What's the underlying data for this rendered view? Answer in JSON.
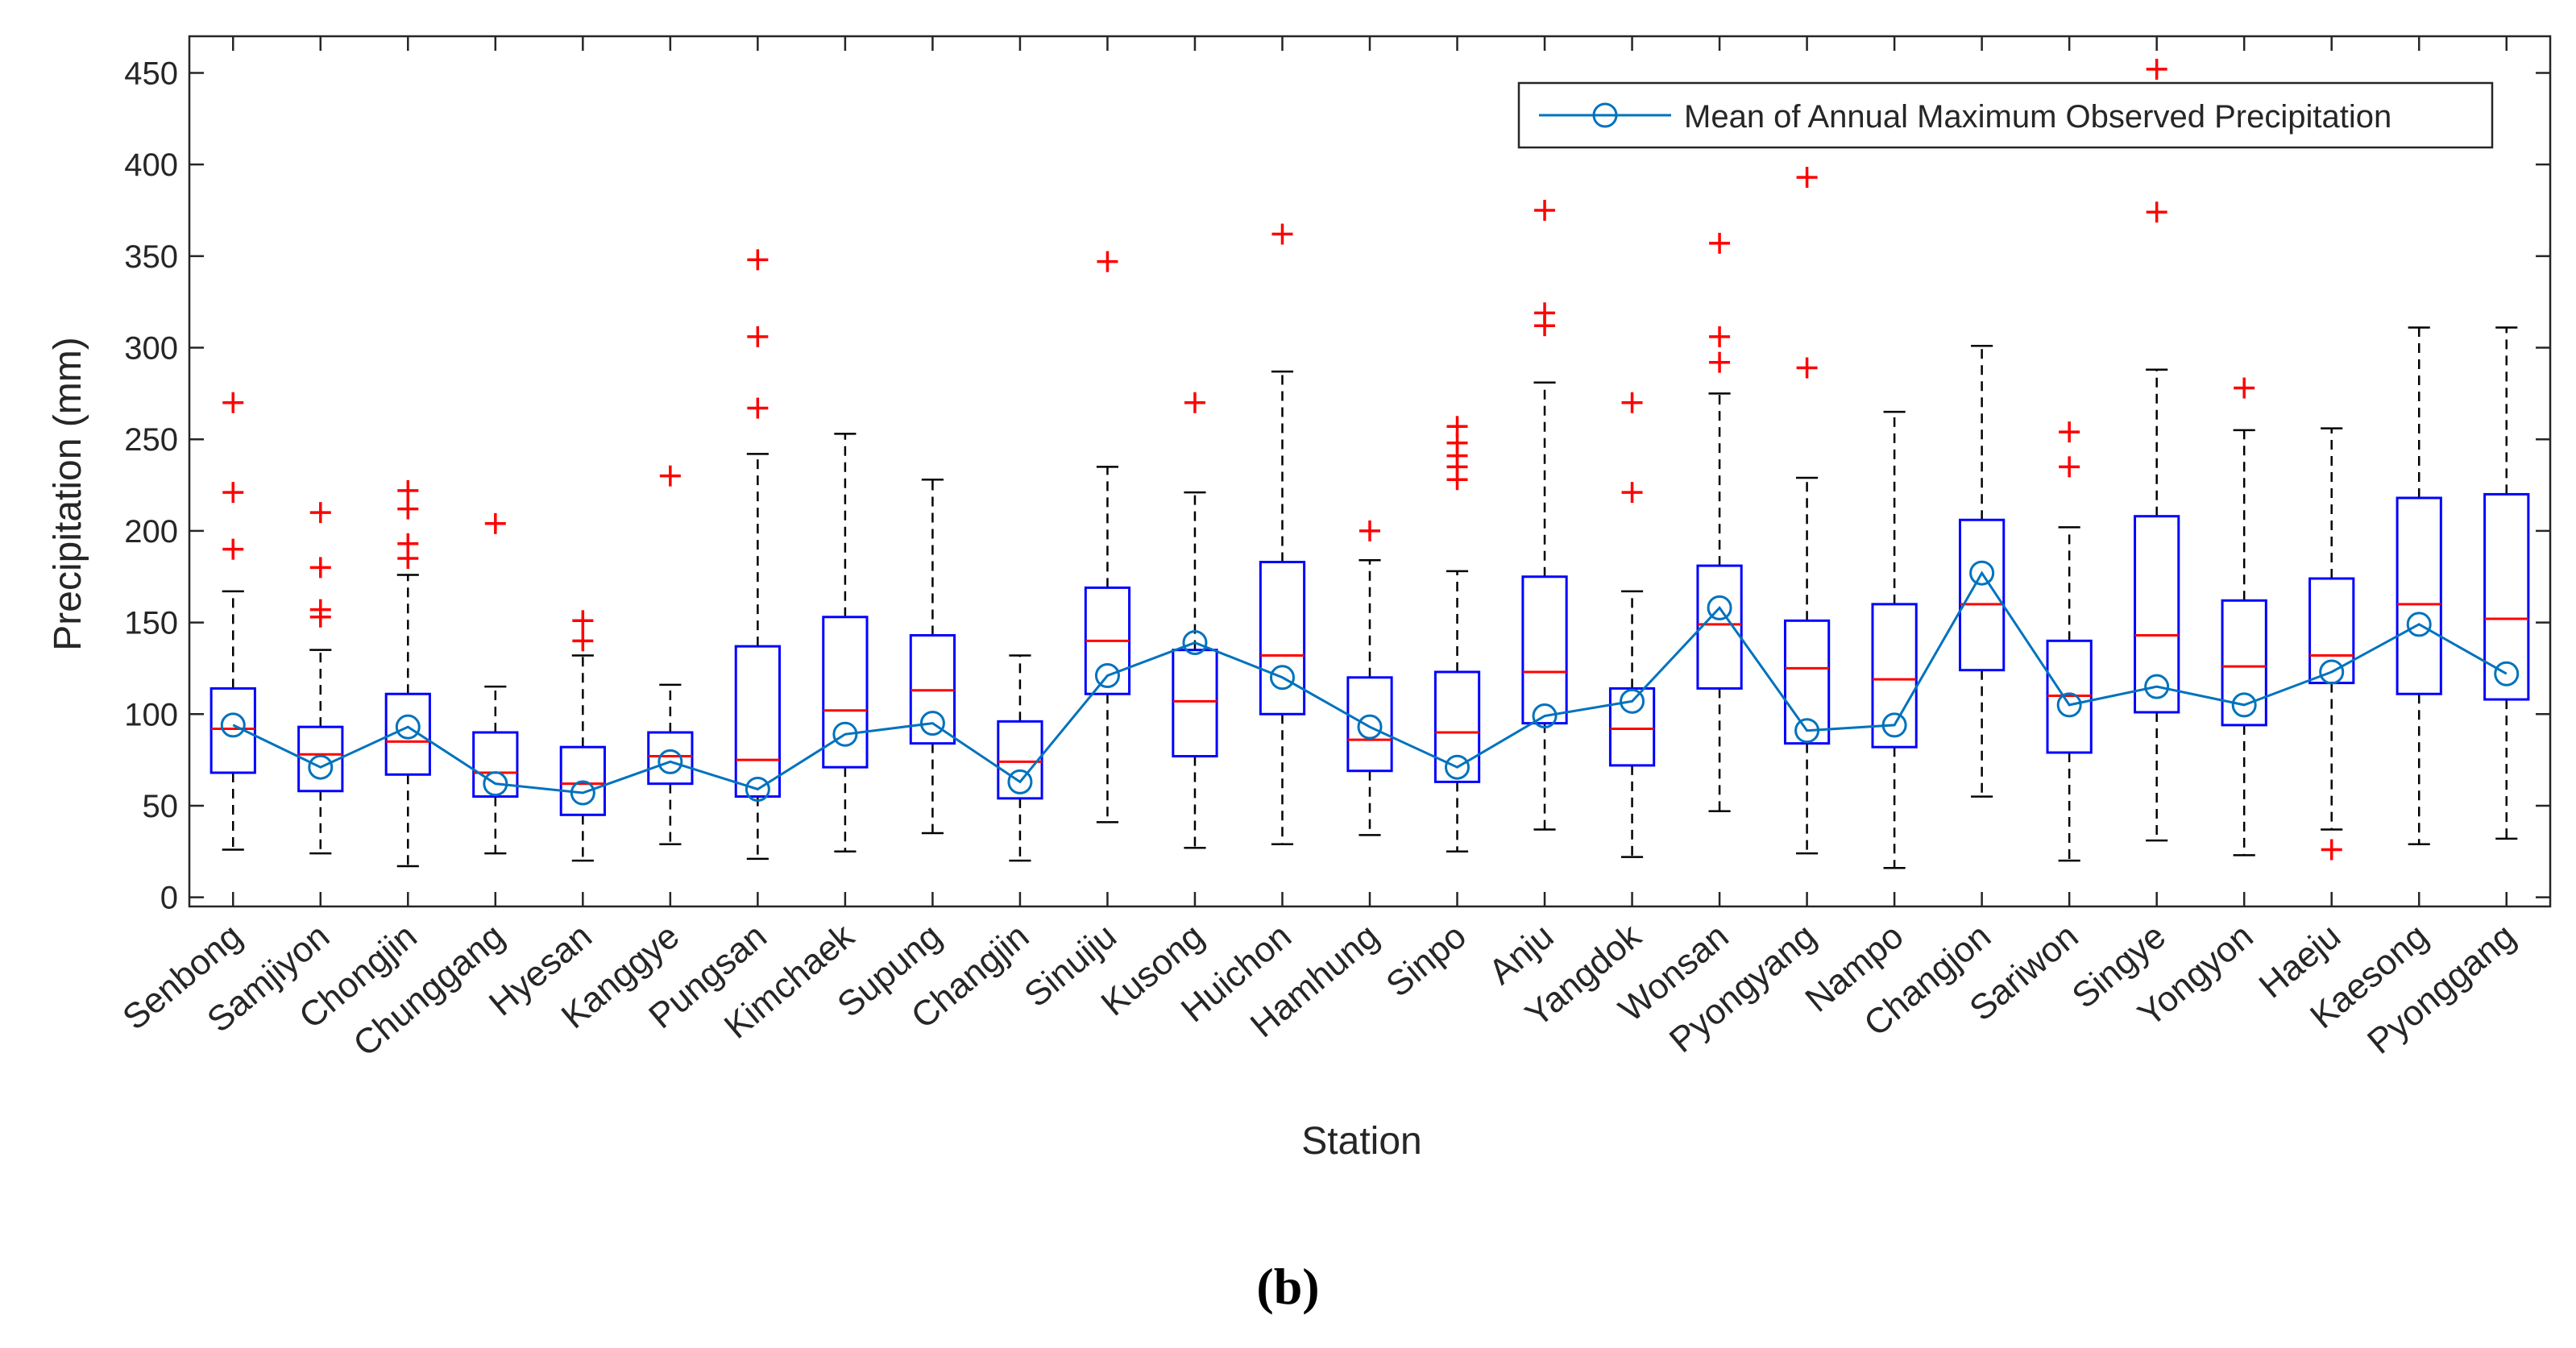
{
  "chart_data": {
    "type": "box",
    "title": "",
    "xlabel": "Station",
    "ylabel": "Precipitation (mm)",
    "ylim": [
      -5,
      470
    ],
    "yticks": [
      0,
      50,
      100,
      150,
      200,
      250,
      300,
      350,
      400,
      450
    ],
    "grid": false,
    "legend": {
      "position": "top-right",
      "entries": [
        "Mean of Annual Maximum Observed Precipitation"
      ]
    },
    "colors": {
      "box": "#0000ff",
      "median": "#ff0000",
      "whisker": "#000000",
      "outlier": "#ff0000",
      "mean_line": "#0072bd"
    },
    "categories": [
      "Senbong",
      "Samjiyon",
      "Chongjin",
      "Chunggang",
      "Hyesan",
      "Kanggye",
      "Pungsan",
      "Kimchaek",
      "Supung",
      "Changjin",
      "Sinuiju",
      "Kusong",
      "Huichon",
      "Hamhung",
      "Sinpo",
      "Anju",
      "Yangdok",
      "Wonsan",
      "Pyongyang",
      "Nampo",
      "Changjon",
      "Sariwon",
      "Singye",
      "Yongyon",
      "Haeju",
      "Kaesong",
      "Pyonggang"
    ],
    "boxes": [
      {
        "whisker_low": 26,
        "q1": 68,
        "median": 92,
        "q3": 114,
        "whisker_high": 167,
        "outliers": [
          190,
          221,
          270
        ]
      },
      {
        "whisker_low": 24,
        "q1": 58,
        "median": 78,
        "q3": 93,
        "whisker_high": 135,
        "outliers": [
          153,
          157,
          180,
          210
        ]
      },
      {
        "whisker_low": 17,
        "q1": 67,
        "median": 85,
        "q3": 111,
        "whisker_high": 176,
        "outliers": [
          185,
          193,
          212,
          222
        ]
      },
      {
        "whisker_low": 24,
        "q1": 55,
        "median": 68,
        "q3": 90,
        "whisker_high": 115,
        "outliers": [
          204
        ]
      },
      {
        "whisker_low": 20,
        "q1": 45,
        "median": 62,
        "q3": 82,
        "whisker_high": 132,
        "outliers": [
          140,
          151
        ]
      },
      {
        "whisker_low": 29,
        "q1": 62,
        "median": 77,
        "q3": 90,
        "whisker_high": 116,
        "outliers": [
          230
        ]
      },
      {
        "whisker_low": 21,
        "q1": 55,
        "median": 75,
        "q3": 137,
        "whisker_high": 242,
        "outliers": [
          267,
          306,
          348
        ]
      },
      {
        "whisker_low": 25,
        "q1": 71,
        "median": 102,
        "q3": 153,
        "whisker_high": 253,
        "outliers": []
      },
      {
        "whisker_low": 35,
        "q1": 84,
        "median": 113,
        "q3": 143,
        "whisker_high": 228,
        "outliers": []
      },
      {
        "whisker_low": 20,
        "q1": 54,
        "median": 74,
        "q3": 96,
        "whisker_high": 132,
        "outliers": []
      },
      {
        "whisker_low": 41,
        "q1": 111,
        "median": 140,
        "q3": 169,
        "whisker_high": 235,
        "outliers": [
          347
        ]
      },
      {
        "whisker_low": 27,
        "q1": 77,
        "median": 107,
        "q3": 135,
        "whisker_high": 221,
        "outliers": [
          270
        ]
      },
      {
        "whisker_low": 29,
        "q1": 100,
        "median": 132,
        "q3": 183,
        "whisker_high": 287,
        "outliers": [
          362
        ]
      },
      {
        "whisker_low": 34,
        "q1": 69,
        "median": 86,
        "q3": 120,
        "whisker_high": 184,
        "outliers": [
          200
        ]
      },
      {
        "whisker_low": 25,
        "q1": 63,
        "median": 90,
        "q3": 123,
        "whisker_high": 178,
        "outliers": [
          228,
          235,
          241,
          248,
          257
        ]
      },
      {
        "whisker_low": 37,
        "q1": 95,
        "median": 123,
        "q3": 175,
        "whisker_high": 281,
        "outliers": [
          312,
          319,
          375
        ]
      },
      {
        "whisker_low": 22,
        "q1": 72,
        "median": 92,
        "q3": 114,
        "whisker_high": 167,
        "outliers": [
          221,
          270
        ]
      },
      {
        "whisker_low": 47,
        "q1": 114,
        "median": 149,
        "q3": 181,
        "whisker_high": 275,
        "outliers": [
          292,
          306,
          357
        ]
      },
      {
        "whisker_low": 24,
        "q1": 84,
        "median": 125,
        "q3": 151,
        "whisker_high": 229,
        "outliers": [
          289,
          393
        ]
      },
      {
        "whisker_low": 16,
        "q1": 82,
        "median": 119,
        "q3": 160,
        "whisker_high": 265,
        "outliers": []
      },
      {
        "whisker_low": 55,
        "q1": 124,
        "median": 160,
        "q3": 206,
        "whisker_high": 301,
        "outliers": []
      },
      {
        "whisker_low": 20,
        "q1": 79,
        "median": 110,
        "q3": 140,
        "whisker_high": 202,
        "outliers": [
          235,
          254
        ]
      },
      {
        "whisker_low": 31,
        "q1": 101,
        "median": 143,
        "q3": 208,
        "whisker_high": 288,
        "outliers": [
          374,
          452
        ]
      },
      {
        "whisker_low": 23,
        "q1": 94,
        "median": 126,
        "q3": 162,
        "whisker_high": 255,
        "outliers": [
          278
        ]
      },
      {
        "whisker_low": 37,
        "q1": 117,
        "median": 132,
        "q3": 174,
        "whisker_high": 256,
        "outliers": [
          26
        ]
      },
      {
        "whisker_low": 29,
        "q1": 111,
        "median": 160,
        "q3": 218,
        "whisker_high": 311,
        "outliers": []
      },
      {
        "whisker_low": 32,
        "q1": 108,
        "median": 152,
        "q3": 220,
        "whisker_high": 311,
        "outliers": []
      }
    ],
    "mean_series": {
      "name": "Mean of Annual Maximum Observed Precipitation",
      "values": [
        94,
        71,
        93,
        62,
        57,
        74,
        59,
        89,
        95,
        63,
        121,
        139,
        120,
        93,
        71,
        99,
        107,
        158,
        91,
        94,
        177,
        105,
        115,
        105,
        123,
        149,
        122
      ]
    }
  },
  "caption": "(b)"
}
